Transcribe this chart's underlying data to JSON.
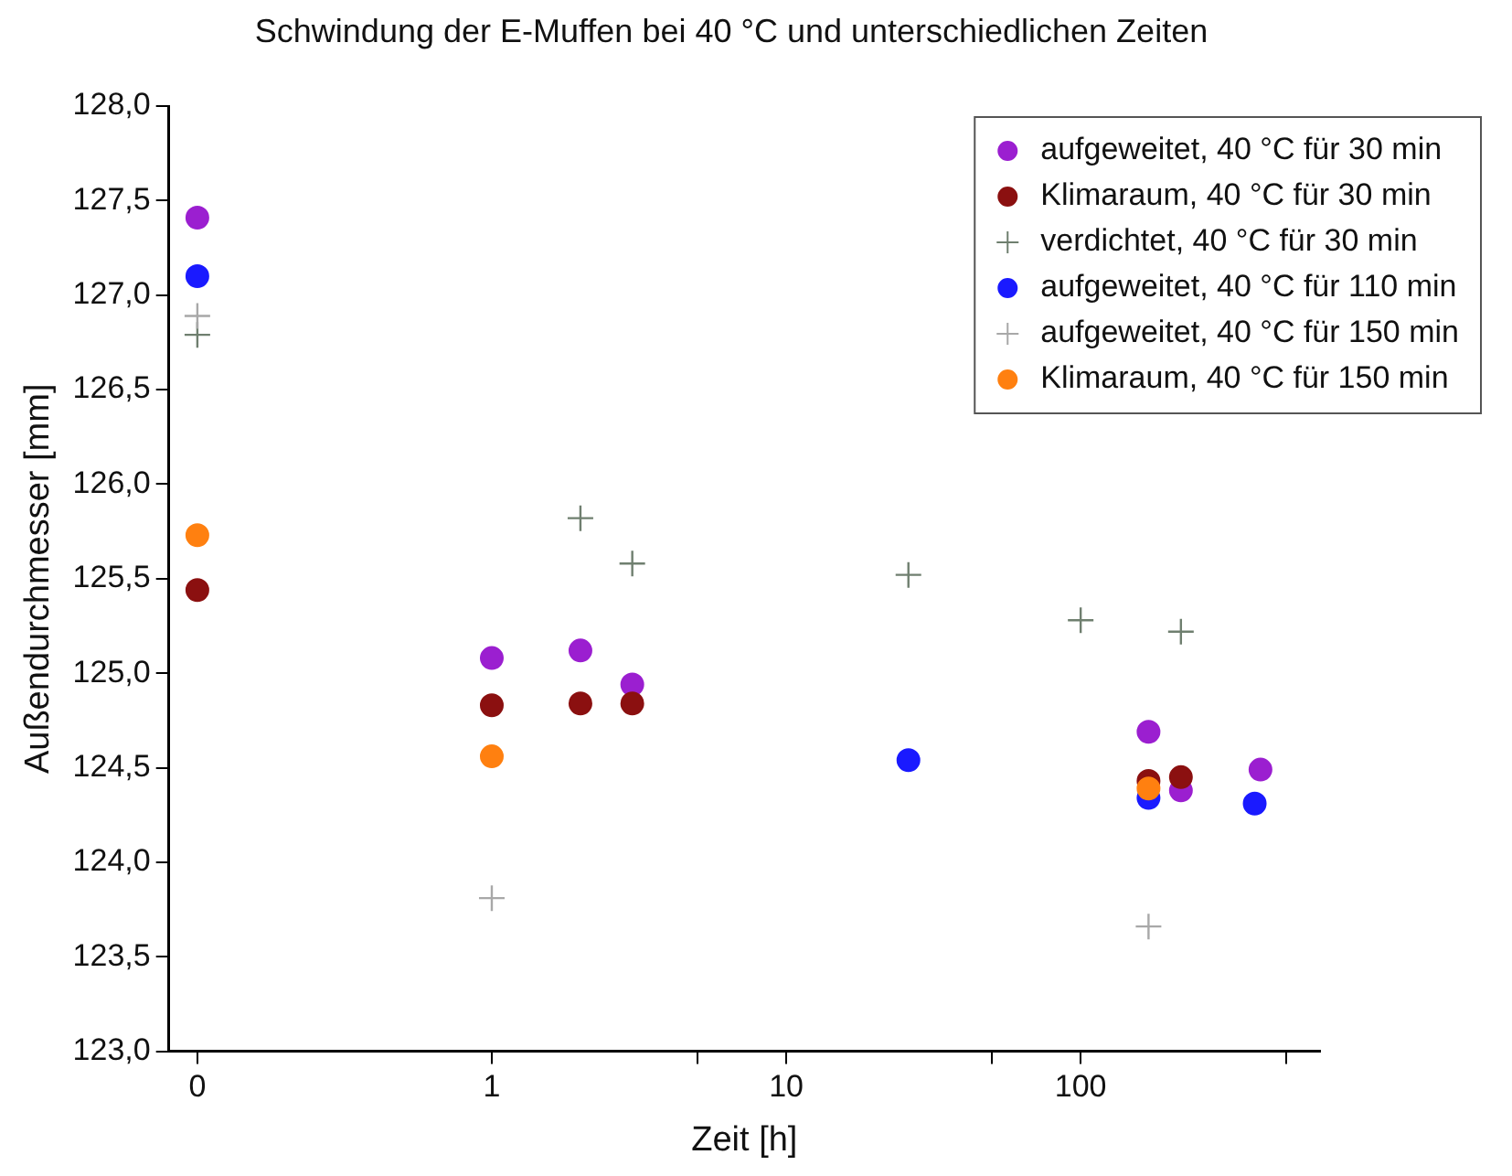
{
  "chart_data": {
    "type": "scatter",
    "title": "Schwindung der E-Muffen bei 40 °C und unterschiedlichen Zeiten",
    "xlabel": "Zeit [h]",
    "ylabel": "Außendurchmesser [mm]",
    "log": "x",
    "grid": false,
    "legend": "top right",
    "xlim": [
      0.08,
      650
    ],
    "xticks": [
      {
        "value": 0.1,
        "label": "0"
      },
      1,
      10,
      100,
      {
        "value": 5,
        "label": null
      },
      {
        "value": 50,
        "label": null
      },
      {
        "value": 500,
        "label": null
      }
    ],
    "ylim": [
      123,
      128
    ],
    "yticks": [
      {
        "value": 123,
        "label": "123,0"
      },
      {
        "value": 123.5,
        "label": "123,5"
      },
      {
        "value": 124,
        "label": "124,0"
      },
      {
        "value": 124.5,
        "label": "124,5"
      },
      {
        "value": 125,
        "label": "125,0"
      },
      {
        "value": 125.5,
        "label": "125,5"
      },
      {
        "value": 126,
        "label": "126,0"
      },
      {
        "value": 126.5,
        "label": "126,5"
      },
      {
        "value": 127,
        "label": "127,0"
      },
      {
        "value": 127.5,
        "label": "127,5"
      },
      {
        "value": 128,
        "label": "128,0"
      }
    ],
    "series": [
      {
        "name": "aufgeweitet, 40 °C für 30 min",
        "color": "#9b1fd0",
        "marker": "circle",
        "x": [
          0.1,
          1,
          2,
          3,
          170,
          219,
          408
        ],
        "values": [
          127.41,
          125.08,
          125.12,
          124.94,
          124.69,
          124.38,
          124.49
        ]
      },
      {
        "name": "Klimaraum, 40 °C für 30 min",
        "color": "#8b1010",
        "marker": "circle",
        "x": [
          0.1,
          1,
          2,
          3,
          170,
          219
        ],
        "values": [
          125.44,
          124.83,
          124.84,
          124.84,
          124.43,
          124.45
        ]
      },
      {
        "name": "verdichtet, 40 °C für 30 min",
        "color": "#6f7f6f",
        "marker": "cross",
        "x": [
          0.1,
          2,
          3,
          26,
          100,
          219
        ],
        "values": [
          126.79,
          125.82,
          125.58,
          125.52,
          125.28,
          125.22
        ]
      },
      {
        "name": "aufgeweitet, 40 °C für 110 min",
        "color": "#1a1aff",
        "marker": "circle",
        "x": [
          0.1,
          26,
          170,
          390
        ],
        "values": [
          127.1,
          124.54,
          124.34,
          124.31
        ]
      },
      {
        "name": "aufgeweitet, 40 °C für 150 min",
        "color": "#a8a8a8",
        "marker": "cross",
        "x": [
          0.1,
          1,
          170
        ],
        "values": [
          126.89,
          123.81,
          123.66
        ]
      },
      {
        "name": "Klimaraum, 40 °C für 150 min",
        "color": "#ff8010",
        "marker": "circle",
        "x": [
          0.1,
          1,
          170
        ],
        "values": [
          125.73,
          124.56,
          124.39
        ]
      }
    ]
  }
}
